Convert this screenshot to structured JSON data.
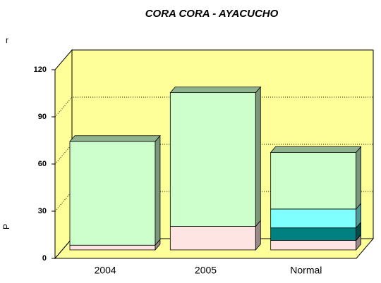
{
  "chart_data": {
    "type": "bar3d_stacked",
    "title": "CORA CORA - AYACUCHO",
    "annotations": [
      "r",
      "P"
    ],
    "categories": [
      "2004",
      "2005",
      "Normal"
    ],
    "series": [
      {
        "color": "#ffe4e4",
        "values": [
          3,
          15,
          6
        ]
      },
      {
        "color": "#008080",
        "values": [
          0,
          0,
          8
        ]
      },
      {
        "color": "#80ffff",
        "values": [
          0,
          0,
          12
        ]
      },
      {
        "color": "#ccffcc",
        "values": [
          66,
          85,
          36
        ]
      }
    ],
    "ylim": [
      0,
      120
    ],
    "yticks": [
      0,
      30,
      60,
      90,
      120
    ],
    "grid": true,
    "wall_color": "#ffff99"
  }
}
